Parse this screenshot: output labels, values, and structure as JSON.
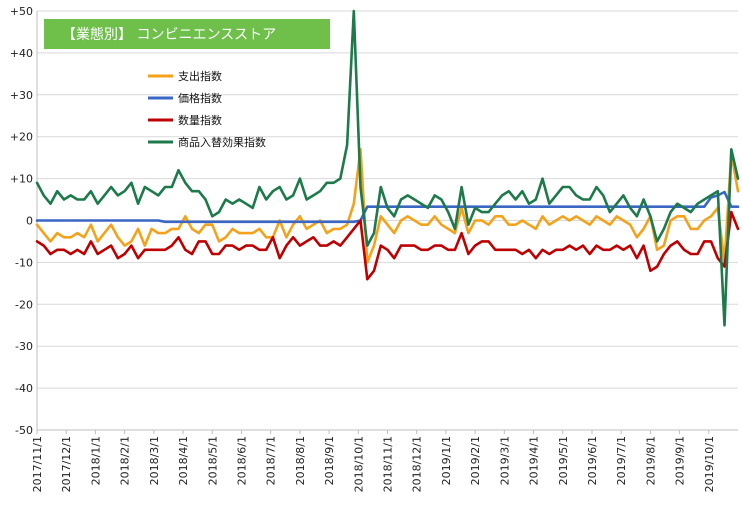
{
  "chart_data": {
    "type": "line",
    "title": "【業態別】 コンビニエンスストア",
    "xlabel": "",
    "ylabel": "",
    "ylim": [
      -50,
      50
    ],
    "yticks": [
      50,
      40,
      30,
      20,
      10,
      0,
      -10,
      -20,
      -30,
      -40,
      -50
    ],
    "ytick_labels": [
      "+50",
      "+40",
      "+30",
      "+20",
      "+10",
      "0",
      "-10",
      "-20",
      "-30",
      "-40",
      "-50"
    ],
    "x_tick_labels": [
      "2017/11/1",
      "2017/12/1",
      "2018/1/1",
      "2018/2/1",
      "2018/3/1",
      "2018/4/1",
      "2018/5/1",
      "2018/6/1",
      "2018/7/1",
      "2018/8/1",
      "2018/9/1",
      "2018/10/1",
      "2018/11/1",
      "2018/12/1",
      "2019/1/1",
      "2019/2/1",
      "2019/3/1",
      "2019/4/1",
      "2019/5/1",
      "2019/6/1",
      "2019/7/1",
      "2019/8/1",
      "2019/9/1",
      "2019/10/1"
    ],
    "x_count": 105,
    "grid": true,
    "legend_position": "top-left",
    "title_background": "#6ec04b",
    "series": [
      {
        "name": "支出指数",
        "color": "#f5a21b",
        "values": [
          -1,
          -3,
          -5,
          -3,
          -4,
          -4,
          -3,
          -4,
          -1,
          -5,
          -3,
          -1,
          -4,
          -6,
          -5,
          -2,
          -6,
          -2,
          -3,
          -3,
          -2,
          -2,
          1,
          -2,
          -3,
          -1,
          -1,
          -5,
          -4,
          -2,
          -3,
          -3,
          -3,
          -2,
          -4,
          -4,
          0,
          -4,
          -1,
          1,
          -2,
          -1,
          0,
          -3,
          -2,
          -2,
          -1,
          4,
          17,
          -10,
          -6,
          1,
          -1,
          -3,
          0,
          1,
          0,
          -1,
          -1,
          1,
          -1,
          -2,
          -3,
          3,
          -3,
          0,
          0,
          -1,
          1,
          1,
          -1,
          -1,
          0,
          -1,
          -2,
          1,
          -1,
          0,
          1,
          0,
          1,
          0,
          -1,
          1,
          0,
          -1,
          1,
          0,
          -1,
          -4,
          -2,
          1,
          -7,
          -6,
          0,
          1,
          1,
          -2,
          -2,
          0,
          1,
          3,
          -10,
          16,
          7
        ],
        "labels": []
      },
      {
        "name": "価格指数",
        "color": "#3a66c4",
        "values": [
          0,
          0,
          0,
          0,
          0,
          0,
          0,
          0,
          0,
          0,
          0,
          0,
          0,
          0,
          0,
          0,
          0,
          0,
          0,
          -0.3,
          -0.3,
          -0.3,
          -0.3,
          -0.3,
          -0.3,
          -0.3,
          -0.3,
          -0.3,
          -0.3,
          -0.3,
          -0.3,
          -0.3,
          -0.3,
          -0.3,
          -0.3,
          -0.3,
          -0.3,
          -0.3,
          -0.3,
          -0.3,
          -0.3,
          -0.3,
          -0.3,
          -0.3,
          -0.3,
          -0.3,
          -0.3,
          -0.3,
          0,
          3.3,
          3.3,
          3.3,
          3.3,
          3.3,
          3.3,
          3.3,
          3.3,
          3.3,
          3.3,
          3.3,
          3.3,
          3.3,
          3.3,
          3.3,
          3.3,
          3.3,
          3.3,
          3.3,
          3.3,
          3.3,
          3.3,
          3.3,
          3.3,
          3.3,
          3.3,
          3.3,
          3.3,
          3.3,
          3.3,
          3.3,
          3.3,
          3.3,
          3.3,
          3.3,
          3.3,
          3.3,
          3.3,
          3.3,
          3.3,
          3.3,
          3.3,
          3.3,
          3.3,
          3.3,
          3.3,
          3.3,
          3.3,
          3.3,
          3.3,
          3.3,
          5.5,
          6,
          6.8,
          3.3,
          3.3
        ],
        "labels": []
      },
      {
        "name": "数量指数",
        "color": "#c00000",
        "values": [
          -5,
          -6,
          -8,
          -7,
          -7,
          -8,
          -7,
          -8,
          -5,
          -8,
          -7,
          -6,
          -9,
          -8,
          -6,
          -9,
          -7,
          -7,
          -7,
          -7,
          -6,
          -4,
          -7,
          -8,
          -5,
          -5,
          -8,
          -8,
          -6,
          -6,
          -7,
          -6,
          -6,
          -7,
          -7,
          -4,
          -9,
          -6,
          -4,
          -6,
          -5,
          -4,
          -6,
          -6,
          -5,
          -6,
          -4,
          -2,
          0,
          -14,
          -12,
          -6,
          -7,
          -9,
          -6,
          -6,
          -6,
          -7,
          -7,
          -6,
          -6,
          -7,
          -7,
          -3,
          -8,
          -6,
          -5,
          -5,
          -7,
          -7,
          -7,
          -7,
          -8,
          -7,
          -9,
          -7,
          -8,
          -7,
          -7,
          -6,
          -7,
          -6,
          -8,
          -6,
          -7,
          -7,
          -6,
          -7,
          -6,
          -9,
          -6,
          -12,
          -11,
          -8,
          -6,
          -5,
          -7,
          -8,
          -8,
          -5,
          -5,
          -9,
          -11,
          2,
          -2
        ],
        "labels": []
      },
      {
        "name": "商品入替効果指数",
        "color": "#1d7a4a",
        "values": [
          9,
          6,
          4,
          7,
          5,
          6,
          5,
          5,
          7,
          4,
          6,
          8,
          6,
          7,
          9,
          4,
          8,
          7,
          6,
          8,
          8,
          12,
          9,
          7,
          7,
          5,
          1,
          2,
          5,
          4,
          5,
          4,
          3,
          8,
          5,
          7,
          8,
          5,
          6,
          10,
          5,
          6,
          7,
          9,
          9,
          10,
          18,
          50,
          8,
          -6,
          -3,
          8,
          3,
          1,
          5,
          6,
          5,
          4,
          3,
          6,
          5,
          2,
          -2,
          8,
          -1,
          3,
          2,
          2,
          4,
          6,
          7,
          5,
          7,
          4,
          5,
          10,
          4,
          6,
          8,
          8,
          6,
          5,
          5,
          8,
          6,
          2,
          4,
          6,
          3,
          1,
          5,
          1,
          -5,
          -2,
          2,
          4,
          3,
          2,
          4,
          5,
          6,
          7,
          -25,
          17,
          10
        ],
        "labels": []
      }
    ]
  }
}
